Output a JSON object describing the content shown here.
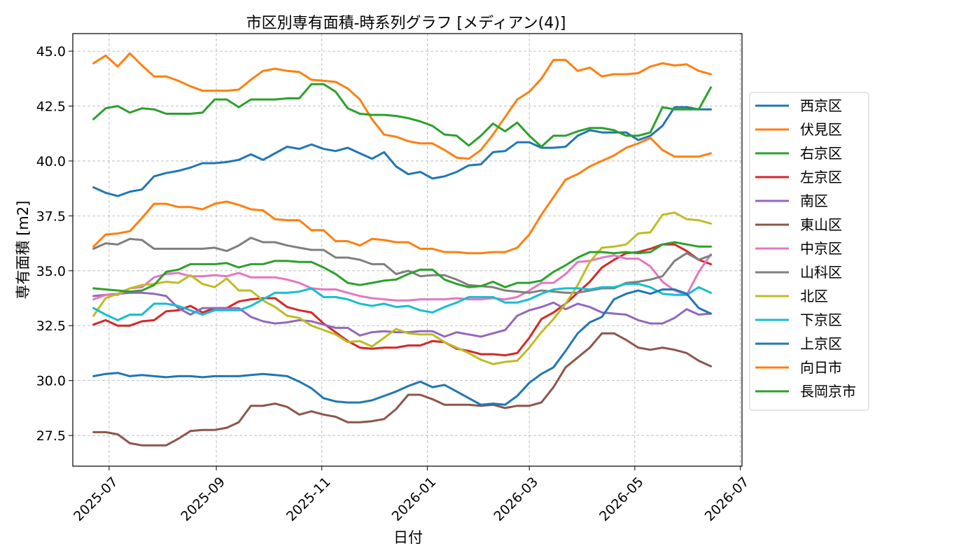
{
  "chart_data": {
    "type": "line",
    "title": "市区別専有面積-時系列グラフ [メディアン(4)]",
    "xlabel": "日付",
    "ylabel": "専有面積 [m2]",
    "x_tick_labels": [
      "2025-07",
      "2025-09",
      "2025-11",
      "2026-01",
      "2026-03",
      "2026-05",
      "2026-07"
    ],
    "y_tick_labels": [
      "27.5",
      "30.0",
      "32.5",
      "35.0",
      "37.5",
      "40.0",
      "42.5",
      "45.0"
    ],
    "y_ticks": [
      27.5,
      30.0,
      32.5,
      35.0,
      37.5,
      40.0,
      42.5,
      45.0
    ],
    "ylim": [
      26.1,
      45.8
    ],
    "xlim": [
      "2025-06-10",
      "2026-07-02"
    ],
    "grid": true,
    "legend_position": "right",
    "x": [
      "2025-06-22",
      "2025-06-29",
      "2025-07-06",
      "2025-07-13",
      "2025-07-20",
      "2025-07-27",
      "2025-08-03",
      "2025-08-10",
      "2025-08-17",
      "2025-08-24",
      "2025-08-31",
      "2025-09-07",
      "2025-09-14",
      "2025-09-21",
      "2025-09-28",
      "2025-10-05",
      "2025-10-12",
      "2025-10-19",
      "2025-10-26",
      "2025-11-02",
      "2025-11-09",
      "2025-11-16",
      "2025-11-23",
      "2025-11-30",
      "2025-12-07",
      "2025-12-14",
      "2025-12-21",
      "2025-12-28",
      "2026-01-04",
      "2026-01-11",
      "2026-01-18",
      "2026-01-25",
      "2026-02-01",
      "2026-02-08",
      "2026-02-15",
      "2026-02-22",
      "2026-03-01",
      "2026-03-08",
      "2026-03-15",
      "2026-03-22",
      "2026-03-29",
      "2026-04-05",
      "2026-04-12",
      "2026-04-19",
      "2026-04-26",
      "2026-05-03",
      "2026-05-10",
      "2026-05-17",
      "2026-05-24",
      "2026-05-31",
      "2026-06-07",
      "2026-06-14"
    ],
    "series": [
      {
        "name": "西京区",
        "color": "#1f77b4",
        "values": [
          38.8,
          38.55,
          38.4,
          38.6,
          38.7,
          39.3,
          39.45,
          39.55,
          39.7,
          39.9,
          39.9,
          39.95,
          40.05,
          40.3,
          40.05,
          40.35,
          40.65,
          40.55,
          40.75,
          40.55,
          40.45,
          40.6,
          40.35,
          40.1,
          40.4,
          39.75,
          39.4,
          39.5,
          39.2,
          39.3,
          39.5,
          39.8,
          39.85,
          40.4,
          40.45,
          40.85,
          40.85,
          40.6,
          40.6,
          40.65,
          41.15,
          41.4,
          41.3,
          41.3,
          41.3,
          40.95,
          41.15,
          41.6,
          42.45,
          42.45,
          42.35,
          42.35
        ]
      },
      {
        "name": "伏見区",
        "color": "#ff7f0e",
        "values": [
          44.45,
          44.8,
          44.3,
          44.9,
          44.35,
          43.85,
          43.85,
          43.65,
          43.4,
          43.2,
          43.2,
          43.2,
          43.25,
          43.7,
          44.1,
          44.2,
          44.1,
          44.05,
          43.7,
          43.65,
          43.6,
          43.3,
          42.8,
          41.9,
          41.2,
          41.1,
          40.9,
          40.8,
          40.8,
          40.5,
          40.15,
          40.1,
          40.5,
          41.2,
          42.0,
          42.8,
          43.15,
          43.75,
          44.6,
          44.6,
          44.1,
          44.25,
          43.85,
          43.95,
          43.95,
          44.0,
          44.3,
          44.45,
          44.35,
          44.4,
          44.1,
          43.95
        ]
      },
      {
        "name": "右京区",
        "color": "#2ca02c",
        "values": [
          41.9,
          42.4,
          42.5,
          42.2,
          42.4,
          42.35,
          42.15,
          42.15,
          42.15,
          42.2,
          42.8,
          42.8,
          42.45,
          42.8,
          42.8,
          42.8,
          42.85,
          42.85,
          43.5,
          43.5,
          43.15,
          42.4,
          42.15,
          42.1,
          42.1,
          42.05,
          41.95,
          41.8,
          41.6,
          41.2,
          41.15,
          40.7,
          41.15,
          41.7,
          41.35,
          41.75,
          41.15,
          40.65,
          41.15,
          41.15,
          41.35,
          41.5,
          41.5,
          41.4,
          41.15,
          41.15,
          41.3,
          42.45,
          42.35,
          42.35,
          42.35,
          43.35
        ]
      },
      {
        "name": "左京区",
        "color": "#d62728",
        "values": [
          32.55,
          32.75,
          32.5,
          32.5,
          32.7,
          32.75,
          33.15,
          33.2,
          33.4,
          33.1,
          33.3,
          33.3,
          33.6,
          33.7,
          33.75,
          33.75,
          33.35,
          33.2,
          33.1,
          32.6,
          32.2,
          31.8,
          31.5,
          31.45,
          31.5,
          31.5,
          31.6,
          31.6,
          31.8,
          31.75,
          31.45,
          31.35,
          31.2,
          31.2,
          31.15,
          31.25,
          31.95,
          32.8,
          33.1,
          33.5,
          34.0,
          34.5,
          35.15,
          35.5,
          35.8,
          35.85,
          36.0,
          36.2,
          36.2,
          35.9,
          35.5,
          35.3
        ]
      },
      {
        "name": "南区",
        "color": "#9467bd",
        "values": [
          33.85,
          33.9,
          33.95,
          34.0,
          34.0,
          33.95,
          33.85,
          33.3,
          33.0,
          33.3,
          33.3,
          33.3,
          33.3,
          32.9,
          32.7,
          32.6,
          32.65,
          32.75,
          32.7,
          32.55,
          32.4,
          32.4,
          32.05,
          32.2,
          32.25,
          32.2,
          32.2,
          32.25,
          32.25,
          32.0,
          32.2,
          32.1,
          32.0,
          32.15,
          32.3,
          32.95,
          33.2,
          33.35,
          33.55,
          33.25,
          33.5,
          33.35,
          33.1,
          33.05,
          33.0,
          32.75,
          32.6,
          32.6,
          32.85,
          33.25,
          33.0,
          33.05
        ]
      },
      {
        "name": "東山区",
        "color": "#8c564b",
        "values": [
          27.65,
          27.65,
          27.55,
          27.15,
          27.05,
          27.05,
          27.05,
          27.35,
          27.7,
          27.75,
          27.75,
          27.85,
          28.1,
          28.85,
          28.85,
          28.95,
          28.8,
          28.45,
          28.6,
          28.45,
          28.35,
          28.1,
          28.1,
          28.15,
          28.25,
          28.7,
          29.35,
          29.35,
          29.15,
          28.9,
          28.9,
          28.9,
          28.85,
          28.9,
          28.75,
          28.85,
          28.85,
          29.0,
          29.7,
          30.6,
          31.05,
          31.5,
          32.15,
          32.15,
          31.85,
          31.5,
          31.4,
          31.5,
          31.4,
          31.25,
          30.9,
          30.65
        ]
      },
      {
        "name": "中京区",
        "color": "#e377c2",
        "values": [
          33.7,
          33.9,
          33.9,
          34.2,
          34.25,
          34.7,
          34.85,
          34.9,
          34.75,
          34.75,
          34.8,
          34.75,
          34.9,
          34.7,
          34.7,
          34.7,
          34.6,
          34.45,
          34.2,
          34.15,
          34.15,
          34.0,
          33.85,
          33.75,
          33.7,
          33.65,
          33.65,
          33.7,
          33.7,
          33.7,
          33.75,
          33.7,
          33.7,
          33.75,
          33.7,
          33.8,
          34.1,
          34.45,
          34.45,
          34.85,
          35.4,
          35.45,
          35.6,
          35.7,
          35.55,
          35.55,
          35.2,
          34.5,
          34.1,
          33.9,
          34.95,
          35.75
        ]
      },
      {
        "name": "山科区",
        "color": "#7f7f7f",
        "values": [
          36.0,
          36.25,
          36.2,
          36.45,
          36.4,
          36.0,
          36.0,
          36.0,
          36.0,
          36.0,
          36.05,
          35.9,
          36.15,
          36.5,
          36.3,
          36.3,
          36.15,
          36.05,
          35.95,
          35.95,
          35.6,
          35.6,
          35.5,
          35.3,
          35.3,
          34.85,
          35.0,
          34.75,
          34.8,
          34.8,
          34.6,
          34.35,
          34.3,
          34.25,
          34.1,
          34.05,
          34.0,
          34.1,
          34.05,
          34.0,
          34.0,
          34.1,
          34.2,
          34.2,
          34.45,
          34.5,
          34.6,
          34.75,
          35.45,
          35.8,
          35.5,
          35.7
        ]
      },
      {
        "name": "北区",
        "color": "#bcbd22",
        "values": [
          32.95,
          33.75,
          33.95,
          34.2,
          34.35,
          34.4,
          34.5,
          34.45,
          34.8,
          34.4,
          34.25,
          34.65,
          34.1,
          34.1,
          33.65,
          33.35,
          32.95,
          32.85,
          32.5,
          32.3,
          32.1,
          31.75,
          31.8,
          31.55,
          31.95,
          32.35,
          32.15,
          32.1,
          32.1,
          31.75,
          31.5,
          31.25,
          30.95,
          30.75,
          30.85,
          30.9,
          31.5,
          32.2,
          32.8,
          33.5,
          34.35,
          35.4,
          36.05,
          36.1,
          36.2,
          36.7,
          36.75,
          37.55,
          37.65,
          37.35,
          37.3,
          37.15
        ]
      },
      {
        "name": "下京区",
        "color": "#17becf",
        "values": [
          33.3,
          33.0,
          32.75,
          33.0,
          33.0,
          33.5,
          33.5,
          33.4,
          33.2,
          33.0,
          33.2,
          33.2,
          33.2,
          33.4,
          33.7,
          34.0,
          34.0,
          34.05,
          34.2,
          33.8,
          33.8,
          33.7,
          33.5,
          33.4,
          33.5,
          33.35,
          33.4,
          33.2,
          33.1,
          33.35,
          33.55,
          33.8,
          33.8,
          33.8,
          33.55,
          33.55,
          33.7,
          33.95,
          34.15,
          34.2,
          34.2,
          34.15,
          34.25,
          34.25,
          34.4,
          34.4,
          34.25,
          33.95,
          33.9,
          33.9,
          34.25,
          34.0
        ]
      },
      {
        "name": "上京区",
        "color": "#1f77b4",
        "values": [
          30.2,
          30.3,
          30.35,
          30.2,
          30.25,
          30.2,
          30.15,
          30.2,
          30.2,
          30.15,
          30.2,
          30.2,
          30.2,
          30.25,
          30.3,
          30.25,
          30.2,
          29.95,
          29.65,
          29.2,
          29.05,
          29.0,
          29.0,
          29.1,
          29.3,
          29.5,
          29.75,
          29.95,
          29.7,
          29.8,
          29.5,
          29.2,
          28.9,
          28.95,
          28.9,
          29.3,
          29.9,
          30.3,
          30.6,
          31.35,
          32.15,
          32.65,
          32.9,
          33.7,
          33.95,
          34.1,
          33.95,
          34.15,
          34.15,
          33.95,
          33.3,
          33.05
        ]
      },
      {
        "name": "向日市",
        "color": "#ff7f0e",
        "values": [
          36.1,
          36.65,
          36.7,
          36.8,
          37.4,
          38.05,
          38.05,
          37.9,
          37.9,
          37.8,
          38.05,
          38.15,
          38.0,
          37.8,
          37.75,
          37.35,
          37.3,
          37.3,
          36.85,
          36.85,
          36.35,
          36.35,
          36.15,
          36.45,
          36.4,
          36.3,
          36.3,
          36.0,
          36.0,
          35.85,
          35.85,
          35.8,
          35.8,
          35.85,
          35.85,
          36.05,
          36.65,
          37.55,
          38.35,
          39.15,
          39.4,
          39.75,
          40.0,
          40.25,
          40.6,
          40.8,
          41.05,
          40.5,
          40.2,
          40.2,
          40.2,
          40.35
        ]
      },
      {
        "name": "長岡京市",
        "color": "#2ca02c",
        "values": [
          34.2,
          34.15,
          34.1,
          34.05,
          34.1,
          34.35,
          34.95,
          35.05,
          35.3,
          35.3,
          35.3,
          35.35,
          35.15,
          35.3,
          35.3,
          35.45,
          35.45,
          35.4,
          35.4,
          35.15,
          34.85,
          34.45,
          34.35,
          34.45,
          34.55,
          34.6,
          34.85,
          35.05,
          35.05,
          34.6,
          34.4,
          34.25,
          34.3,
          34.5,
          34.25,
          34.45,
          34.45,
          34.55,
          34.95,
          35.25,
          35.6,
          35.85,
          35.85,
          35.8,
          35.85,
          35.8,
          35.85,
          36.2,
          36.3,
          36.2,
          36.1,
          36.1
        ]
      }
    ]
  }
}
